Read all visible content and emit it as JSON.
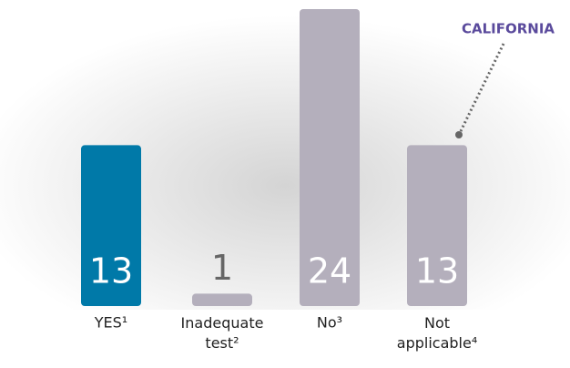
{
  "chart_data": {
    "type": "bar",
    "categories": [
      "YES¹",
      "Inadequate test²",
      "No³",
      "Not applicable⁴"
    ],
    "values": [
      13,
      1,
      24,
      13
    ],
    "colors": [
      "#0079a8",
      "#b4afbc",
      "#b4afbc",
      "#b4afbc"
    ],
    "annotation": "CALIFORNIA"
  }
}
